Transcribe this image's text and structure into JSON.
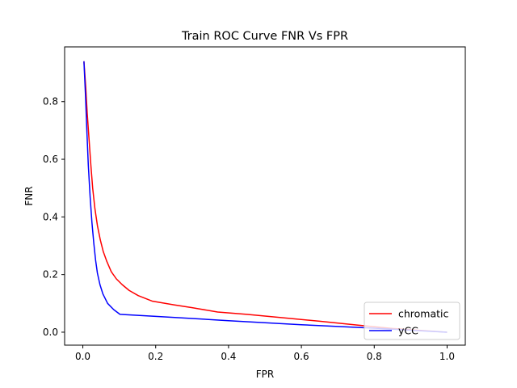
{
  "chart_data": {
    "type": "line",
    "title": "Train ROC Curve FNR Vs FPR",
    "xlabel": "FPR",
    "ylabel": "FNR",
    "xlim": [
      -0.05,
      1.05
    ],
    "ylim": [
      -0.045,
      0.99
    ],
    "xticks": [
      0.0,
      0.2,
      0.4,
      0.6,
      0.8,
      1.0
    ],
    "xtick_labels": [
      "0.0",
      "0.2",
      "0.4",
      "0.6",
      "0.8",
      "1.0"
    ],
    "yticks": [
      0.0,
      0.2,
      0.4,
      0.6,
      0.8
    ],
    "ytick_labels": [
      "0.0",
      "0.2",
      "0.4",
      "0.6",
      "0.8"
    ],
    "grid": false,
    "legend": "lower-right",
    "series": [
      {
        "name": "chromatic",
        "color": "#ff0000",
        "x": [
          0.003,
          0.008,
          0.012,
          0.017,
          0.022,
          0.027,
          0.033,
          0.04,
          0.048,
          0.056,
          0.066,
          0.078,
          0.092,
          0.108,
          0.127,
          0.152,
          0.19,
          0.25,
          0.3,
          0.37,
          0.45,
          0.55,
          0.65,
          0.75,
          0.85,
          1.0
        ],
        "y": [
          0.94,
          0.85,
          0.76,
          0.67,
          0.58,
          0.5,
          0.43,
          0.37,
          0.32,
          0.28,
          0.245,
          0.21,
          0.185,
          0.165,
          0.145,
          0.127,
          0.108,
          0.095,
          0.085,
          0.07,
          0.062,
          0.05,
          0.038,
          0.025,
          0.013,
          0.0
        ]
      },
      {
        "name": "yCC",
        "color": "#0000ff",
        "x": [
          0.003,
          0.007,
          0.011,
          0.015,
          0.02,
          0.025,
          0.03,
          0.035,
          0.04,
          0.047,
          0.055,
          0.068,
          0.085,
          0.102,
          0.2,
          0.4,
          0.6,
          0.8,
          1.0
        ],
        "y": [
          0.94,
          0.83,
          0.7,
          0.58,
          0.47,
          0.38,
          0.31,
          0.25,
          0.205,
          0.165,
          0.133,
          0.1,
          0.078,
          0.062,
          0.055,
          0.04,
          0.026,
          0.014,
          0.0
        ]
      }
    ]
  }
}
